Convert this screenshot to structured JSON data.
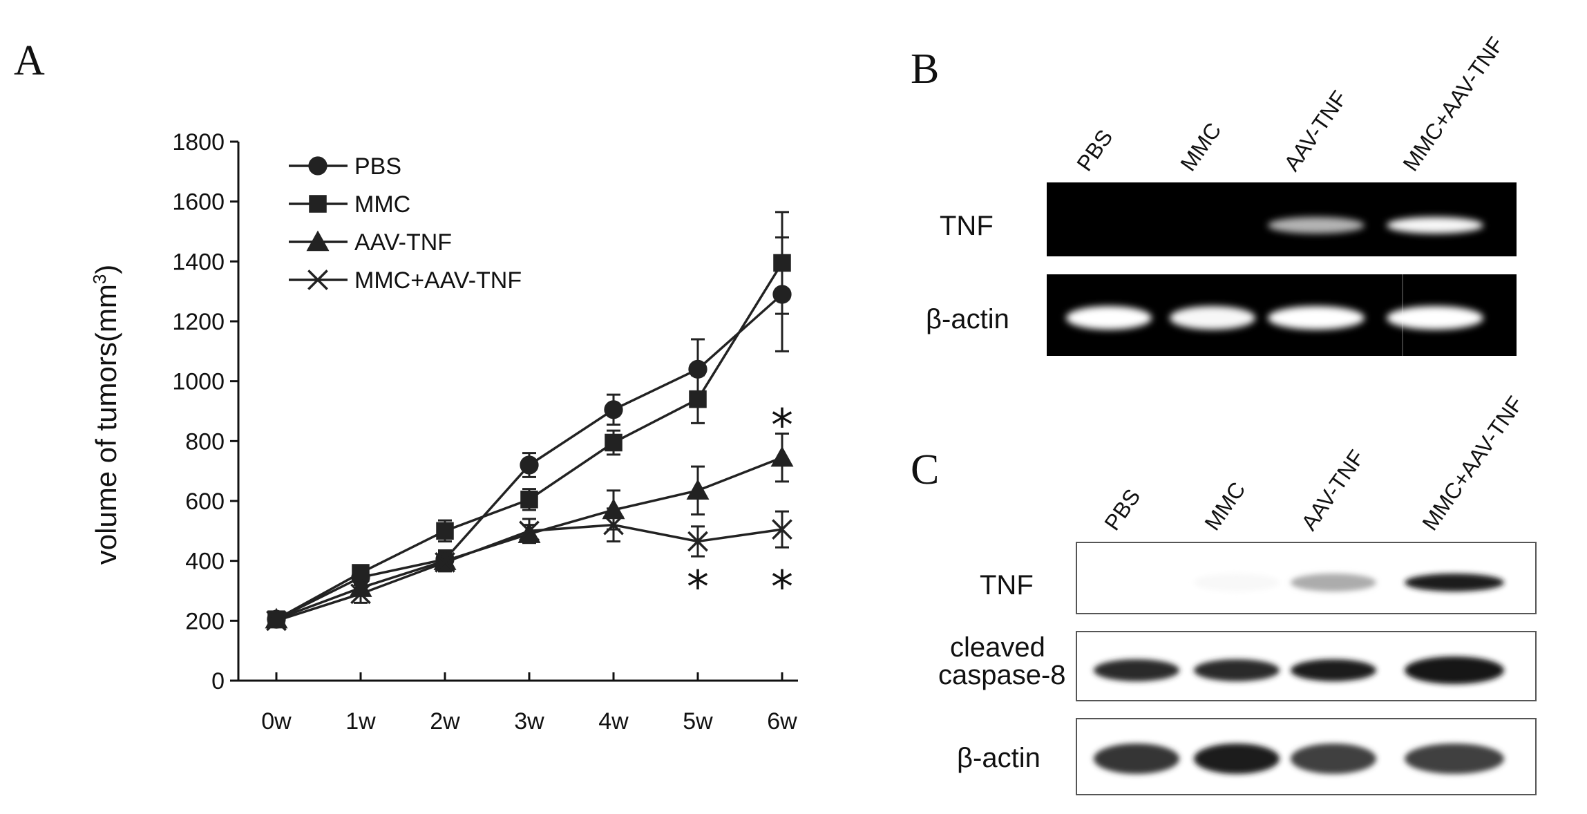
{
  "panels": {
    "A": "A",
    "B": "B",
    "C": "C"
  },
  "chart_data": {
    "type": "line",
    "ylabel": "volume of tumors(mm",
    "ylabel_sup": "3",
    "ylabel_close": ")",
    "xlabel": "",
    "ylim": [
      0,
      1800
    ],
    "yticks": [
      0,
      200,
      400,
      600,
      800,
      1000,
      1200,
      1400,
      1600,
      1800
    ],
    "categories": [
      "0w",
      "1w",
      "2w",
      "3w",
      "4w",
      "5w",
      "6w"
    ],
    "legend_position": "top-left",
    "series": [
      {
        "name": "PBS",
        "marker": "circle",
        "values": [
          205,
          345,
          405,
          720,
          905,
          1040,
          1290
        ],
        "errors": [
          15,
          25,
          30,
          40,
          50,
          100,
          190
        ]
      },
      {
        "name": "MMC",
        "marker": "square",
        "values": [
          205,
          360,
          500,
          605,
          795,
          940,
          1395
        ],
        "errors": [
          15,
          20,
          35,
          35,
          40,
          80,
          170
        ]
      },
      {
        "name": "AAV-TNF",
        "marker": "triangle",
        "values": [
          205,
          310,
          400,
          490,
          570,
          635,
          745
        ],
        "errors": [
          15,
          25,
          30,
          30,
          65,
          80,
          80
        ]
      },
      {
        "name": "MMC+AAV-TNF",
        "marker": "x",
        "values": [
          200,
          290,
          395,
          500,
          520,
          465,
          505
        ],
        "errors": [
          15,
          30,
          30,
          40,
          55,
          50,
          60
        ]
      }
    ],
    "annotations": [
      {
        "text": "*",
        "x": "5w",
        "y": 350
      },
      {
        "text": "*",
        "x": "6w",
        "y": 350
      },
      {
        "text": "*",
        "x": "6w",
        "y": 890
      }
    ]
  },
  "blot_B": {
    "lanes": [
      "PBS",
      "MMC",
      "AAV-TNF",
      "MMC+AAV-TNF"
    ],
    "rows": [
      {
        "label": "TNF",
        "intensities": [
          0,
          0,
          0.55,
          0.95
        ]
      },
      {
        "label": "β-actin",
        "intensities": [
          1,
          0.95,
          1,
          1
        ]
      }
    ]
  },
  "blot_C": {
    "lanes": [
      "PBS",
      "MMC",
      "AAV-TNF",
      "MMC+AAV-TNF"
    ],
    "rows": [
      {
        "label": "TNF",
        "intensities": [
          0,
          0.03,
          0.35,
          0.95
        ]
      },
      {
        "label_line1": "cleaved",
        "label_line2": "caspase-8",
        "intensities": [
          0.9,
          0.9,
          0.95,
          1
        ]
      },
      {
        "label": "β-actin",
        "intensities": [
          0.85,
          0.95,
          0.8,
          0.8
        ]
      }
    ]
  }
}
